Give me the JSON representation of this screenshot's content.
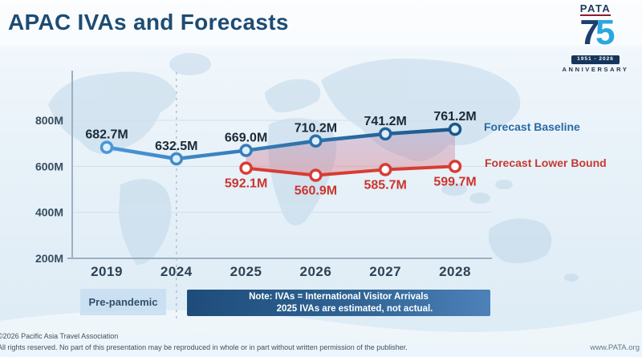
{
  "title": "APAC IVAs and Forecasts",
  "logo": {
    "brand": "PATA",
    "digit_7": "7",
    "digit_5": "5",
    "years": "1951 - 2026",
    "anniversary": "ANNIVERSARY"
  },
  "chart_data": {
    "type": "line",
    "x": [
      "2019",
      "2024",
      "2025",
      "2026",
      "2027",
      "2028"
    ],
    "yticks": {
      "labels": [
        "800M",
        "600M",
        "400M",
        "200M"
      ],
      "values": [
        800,
        600,
        400,
        200
      ]
    },
    "ylim": [
      200,
      860
    ],
    "grid": true,
    "grid_color": "#d4dee7",
    "axis_color": "#9db0c1",
    "divider_after": "2024",
    "legend_position": "right",
    "series": [
      {
        "name": "Forecast Baseline",
        "values": [
          682.7,
          632.5,
          669.0,
          710.2,
          741.2,
          761.2
        ],
        "labels": [
          "682.7M",
          "632.5M",
          "669.0M",
          "710.2M",
          "741.2M",
          "761.2M"
        ],
        "color_start": "#4996d8",
        "color_end": "#1a578b",
        "marker_fill": "#dceefb",
        "label_color": "#1b2a38",
        "label_offset": -11
      },
      {
        "name": "Forecast Lower Bound",
        "values": [
          null,
          null,
          592.1,
          560.9,
          585.7,
          599.7
        ],
        "labels": [
          null,
          null,
          "592.1M",
          "560.9M",
          "585.7M",
          "599.7M"
        ],
        "color": "#d83c34",
        "marker_fill": "#ffffff",
        "label_color": "#c9352e",
        "label_offset": 24
      }
    ],
    "band": {
      "between": [
        "Forecast Baseline",
        "Forecast Lower Bound"
      ],
      "from_x": "2025",
      "to_x": "2028",
      "fill_top": "#9a6ea8",
      "fill_bottom": "#e25f5f"
    }
  },
  "annotations": {
    "pre_pandemic": "Pre-pandemic",
    "note_line1": "Note: IVAs = International Visitor Arrivals",
    "note_line2": "2025 IVAs are estimated, not actual."
  },
  "footer": {
    "copyright": "©2026 Pacific Asia Travel Association",
    "rights": "All rights reserved. No part of this presentation may be reproduced in whole or in part without written permission of the publisher.",
    "website": "www.PATA.org"
  }
}
